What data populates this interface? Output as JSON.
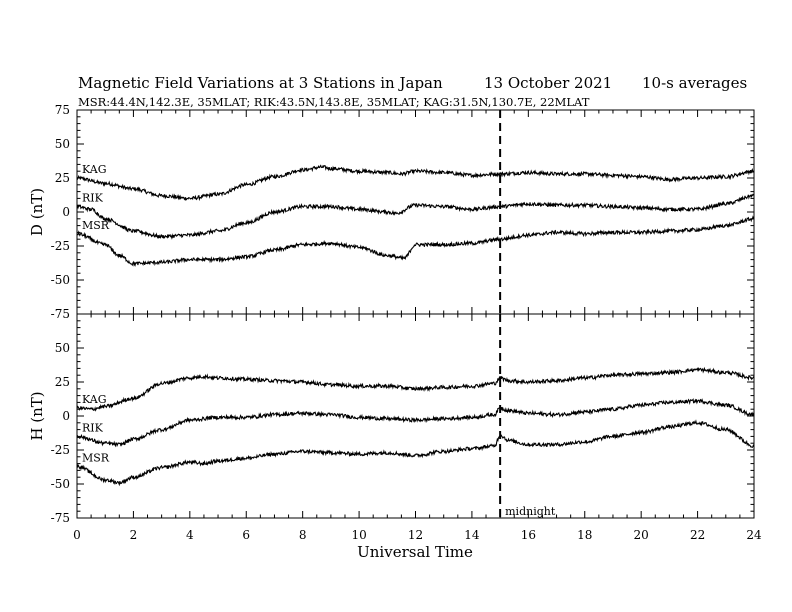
{
  "header": {
    "title": "Magnetic Field Variations at 3 Stations in Japan",
    "date": "13 October 2021",
    "averaging": "10-s averages",
    "stations_line": "MSR:44.4N,142.3E, 35MLAT;  RIK:43.5N,143.8E, 35MLAT;  KAG:31.5N,130.7E, 22MLAT"
  },
  "chart_data": [
    {
      "type": "line",
      "panel": "top",
      "ylabel": "D (nT)",
      "xlim": [
        0,
        24
      ],
      "ylim": [
        -75,
        75
      ],
      "x_ticks": [
        0,
        2,
        4,
        6,
        8,
        10,
        12,
        14,
        16,
        18,
        20,
        22,
        24
      ],
      "y_ticks": [
        -75,
        -50,
        -25,
        0,
        25,
        50,
        75
      ],
      "grid": false,
      "vline": {
        "x": 15,
        "style": "dashed"
      },
      "series": [
        {
          "name": "KAG",
          "x": [
            0,
            1,
            2,
            3,
            4,
            5,
            6,
            7,
            8,
            8.7,
            9,
            10,
            11,
            11.5,
            12,
            13,
            14,
            15,
            16,
            17,
            18,
            19,
            20,
            21,
            22,
            23,
            24
          ],
          "values": [
            25,
            21,
            17,
            12,
            10,
            13,
            20,
            26,
            31,
            33,
            32,
            30,
            29,
            28,
            30,
            29,
            27,
            28,
            29,
            28,
            28,
            27,
            26,
            24,
            25,
            26,
            30
          ]
        },
        {
          "name": "RIK",
          "x": [
            0,
            0.5,
            1,
            2,
            3,
            4,
            5,
            6,
            7,
            8,
            9,
            10,
            11,
            11.3,
            12,
            13,
            14,
            15,
            16,
            17,
            18,
            19,
            20,
            21,
            22,
            23,
            24
          ],
          "values": [
            4,
            2,
            -5,
            -14,
            -18,
            -17,
            -14,
            -8,
            0,
            4,
            4,
            2,
            0,
            -1,
            5,
            4,
            2,
            4,
            6,
            5,
            5,
            4,
            3,
            2,
            2,
            6,
            12
          ]
        },
        {
          "name": "MSR",
          "x": [
            0,
            1,
            1.5,
            2,
            3,
            4,
            5,
            6,
            7,
            8,
            9,
            10,
            11,
            11.6,
            12,
            13,
            14,
            15,
            16,
            17,
            18,
            19,
            20,
            21,
            22,
            23,
            24
          ],
          "values": [
            -16,
            -24,
            -32,
            -38,
            -37,
            -35,
            -35,
            -33,
            -28,
            -24,
            -23,
            -26,
            -32,
            -34,
            -24,
            -24,
            -23,
            -20,
            -17,
            -15,
            -16,
            -15,
            -15,
            -14,
            -13,
            -10,
            -5
          ]
        }
      ]
    },
    {
      "type": "line",
      "panel": "bottom",
      "ylabel": "H (nT)",
      "xlabel": "Universal Time",
      "xlim": [
        0,
        24
      ],
      "ylim": [
        -75,
        75
      ],
      "x_ticks": [
        0,
        2,
        4,
        6,
        8,
        10,
        12,
        14,
        16,
        18,
        20,
        22,
        24
      ],
      "y_ticks": [
        -75,
        -50,
        -25,
        0,
        25,
        50,
        75
      ],
      "grid": false,
      "vline": {
        "x": 15,
        "style": "dashed"
      },
      "annotation": "midnight",
      "series": [
        {
          "name": "KAG",
          "x": [
            0,
            0.5,
            1,
            2,
            3,
            4,
            4.5,
            5,
            6,
            7,
            8,
            9,
            10,
            11,
            12,
            13,
            14,
            14.8,
            15,
            15.3,
            16,
            17,
            18,
            19,
            20,
            21,
            22,
            23,
            24
          ],
          "values": [
            6,
            5,
            7,
            13,
            24,
            28,
            29,
            28,
            27,
            26,
            25,
            23,
            22,
            22,
            20,
            21,
            22,
            24,
            28,
            26,
            25,
            26,
            28,
            30,
            31,
            32,
            34,
            32,
            28
          ]
        },
        {
          "name": "RIK",
          "x": [
            0,
            1,
            1.5,
            2,
            3,
            4,
            5,
            6,
            7,
            8,
            9,
            10,
            11,
            12,
            13,
            14,
            14.8,
            15,
            15.3,
            16,
            17,
            18,
            19,
            20,
            21,
            22,
            23,
            24
          ],
          "values": [
            -15,
            -20,
            -21,
            -17,
            -10,
            -3,
            -1,
            -1,
            1,
            2,
            1,
            -1,
            -2,
            -3,
            -2,
            -1,
            1,
            6,
            4,
            2,
            1,
            3,
            5,
            8,
            10,
            11,
            8,
            1
          ]
        },
        {
          "name": "MSR",
          "x": [
            0,
            1,
            1.5,
            2,
            3,
            4,
            4.5,
            5,
            6,
            7,
            8,
            9,
            10,
            11,
            12,
            13,
            14,
            14.8,
            15,
            15.3,
            16,
            17,
            18,
            19,
            20,
            21,
            22,
            23,
            24
          ],
          "values": [
            -37,
            -47,
            -49,
            -45,
            -38,
            -34,
            -35,
            -33,
            -31,
            -28,
            -26,
            -27,
            -28,
            -27,
            -29,
            -26,
            -24,
            -22,
            -14,
            -18,
            -21,
            -21,
            -19,
            -15,
            -12,
            -8,
            -5,
            -10,
            -22
          ]
        }
      ]
    }
  ]
}
